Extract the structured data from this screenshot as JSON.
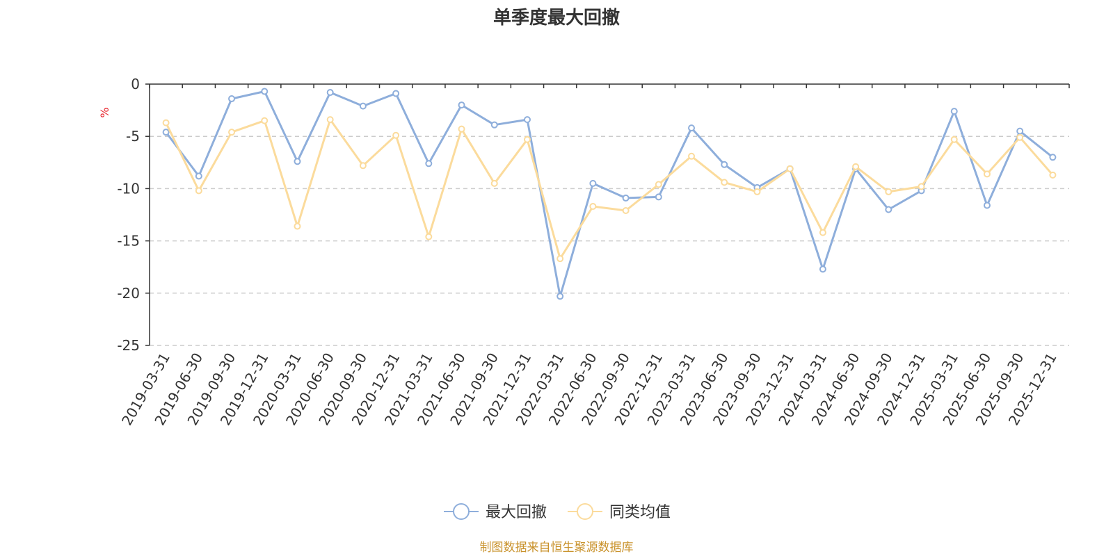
{
  "chart_data": {
    "type": "line",
    "title": "单季度最大回撤",
    "ylabel": "%",
    "ylim": [
      -25,
      0
    ],
    "y_ticks": [
      0,
      -5,
      -10,
      -15,
      -20,
      -25
    ],
    "y_tick_labels": [
      "0",
      "-5",
      "-10",
      "-15",
      "-20",
      "-25"
    ],
    "grid": true,
    "legend_position": "bottom-center",
    "categories": [
      "2019-03-31",
      "2019-06-30",
      "2019-09-30",
      "2019-12-31",
      "2020-03-31",
      "2020-06-30",
      "2020-09-30",
      "2020-12-31",
      "2021-03-31",
      "2021-06-30",
      "2021-09-30",
      "2021-12-31",
      "2022-03-31",
      "2022-06-30",
      "2022-09-30",
      "2022-12-31",
      "2023-03-31",
      "2023-06-30",
      "2023-09-30",
      "2023-12-31",
      "2024-03-31",
      "2024-06-30",
      "2024-09-30",
      "2024-12-31",
      "2025-03-31",
      "2025-06-30",
      "2025-09-30",
      "2025-12-31"
    ],
    "series": [
      {
        "name": "最大回撤",
        "color": "#8eaedb",
        "values": [
          -4.6,
          -8.8,
          -1.4,
          -0.7,
          -7.4,
          -0.8,
          -2.1,
          -0.9,
          -7.6,
          -2.0,
          -3.9,
          -3.4,
          -20.3,
          -9.5,
          -10.9,
          -10.8,
          -4.2,
          -7.7,
          -9.9,
          -8.1,
          -17.7,
          -8.1,
          -12.0,
          -10.2,
          -2.6,
          -11.6,
          -4.5,
          -7.0
        ]
      },
      {
        "name": "同类均值",
        "color": "#fbdb9c",
        "values": [
          -3.7,
          -10.2,
          -4.6,
          -3.5,
          -13.6,
          -3.4,
          -7.8,
          -4.9,
          -14.6,
          -4.3,
          -9.5,
          -5.3,
          -16.7,
          -11.7,
          -12.1,
          -9.6,
          -6.9,
          -9.4,
          -10.3,
          -8.1,
          -14.2,
          -7.9,
          -10.3,
          -9.8,
          -5.3,
          -8.6,
          -5.1,
          -8.7
        ]
      }
    ]
  },
  "source": "制图数据来自恒生聚源数据库"
}
